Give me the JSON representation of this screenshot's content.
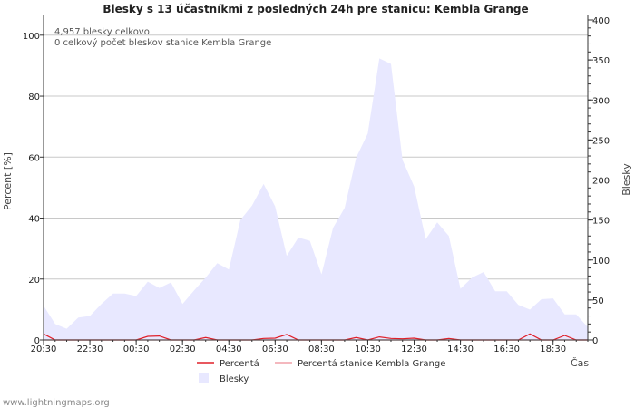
{
  "chart_data": {
    "type": "area",
    "title": "Blesky s 13 účastníkmi z posledných 24h pre stanicu: Kembla Grange",
    "ylabel_left": "Percent   [%]",
    "ylabel_right": "Blesky",
    "xlabel": "Čas",
    "y_left_ticks": [
      "0",
      "20",
      "40",
      "60",
      "80",
      "100"
    ],
    "y_left_lim": [
      0,
      105
    ],
    "y_right_ticks": [
      "0",
      "50",
      "100",
      "150",
      "200",
      "250",
      "300",
      "350",
      "400"
    ],
    "y_right_lim": [
      0,
      400
    ],
    "x_tick_labels": [
      "20:30",
      "22:30",
      "00:30",
      "02:30",
      "04:30",
      "06:30",
      "08:30",
      "10:30",
      "12:30",
      "14:30",
      "16:30",
      "18:30"
    ],
    "x_tick_index": [
      0,
      4,
      8,
      12,
      16,
      20,
      24,
      28,
      32,
      36,
      40,
      44
    ],
    "annotations": [
      "4,957 blesky celkovo",
      "0 celkový počet bleskov stanice Kembla Grange"
    ],
    "series": [
      {
        "name": "Blesky",
        "axis": "right",
        "color": "#e8e8ff",
        "values": [
          43,
          20,
          14,
          28,
          30,
          45,
          58,
          58,
          55,
          73,
          65,
          72,
          45,
          62,
          78,
          96,
          88,
          150,
          168,
          195,
          167,
          105,
          128,
          124,
          82,
          140,
          165,
          228,
          258,
          352,
          345,
          225,
          192,
          126,
          147,
          130,
          64,
          78,
          85,
          61,
          61,
          44,
          38,
          51,
          52,
          32,
          32,
          16
        ]
      },
      {
        "name": "Percentá",
        "axis": "left",
        "color": "#e0202a",
        "values": [
          2.0,
          0,
          0,
          0,
          0,
          0,
          0,
          0,
          0,
          1.2,
          1.3,
          0,
          0,
          0,
          0.8,
          0,
          0,
          0,
          0,
          0.5,
          0.6,
          1.8,
          0,
          0,
          0,
          0,
          0,
          0.8,
          0,
          1.0,
          0.5,
          0.4,
          0.6,
          0,
          0,
          0.5,
          0,
          0,
          0,
          0,
          0,
          0,
          2.0,
          0,
          0,
          1.5,
          0,
          0
        ]
      },
      {
        "name": "Percentá stanice Kembla Grange",
        "axis": "left",
        "color": "#f0a0a8",
        "values": [
          0,
          0,
          0,
          0,
          0,
          0,
          0,
          0,
          0,
          0,
          0,
          0,
          0,
          0,
          0,
          0,
          0,
          0,
          0,
          0,
          0,
          0,
          0,
          0,
          0,
          0,
          0,
          0,
          0,
          0,
          0,
          0,
          0,
          0,
          0,
          0,
          0,
          0,
          0,
          0,
          0,
          0,
          0,
          0,
          0,
          0,
          0,
          0
        ]
      }
    ],
    "legend": [
      "Percentá",
      "Percentá stanice Kembla Grange",
      "Blesky"
    ]
  },
  "footer": "www.lightningmaps.org"
}
